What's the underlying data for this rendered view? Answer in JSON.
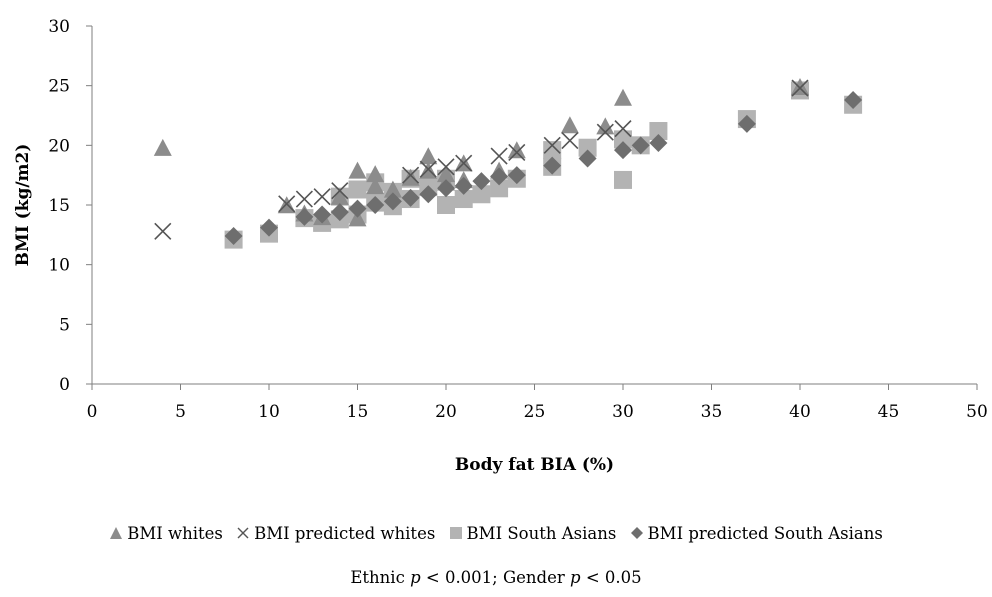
{
  "chart_data": {
    "type": "scatter",
    "title": "",
    "xlabel": "Body fat BIA (%)",
    "ylabel": "BMI (kg/m2)",
    "xlim": [
      0,
      50
    ],
    "ylim": [
      0,
      30
    ],
    "xticks": [
      0,
      5,
      10,
      15,
      20,
      25,
      30,
      35,
      40,
      45,
      50
    ],
    "yticks": [
      0,
      5,
      10,
      15,
      20,
      25,
      30
    ],
    "grid": false,
    "legend_position": "bottom",
    "series": [
      {
        "name": "BMI whites",
        "marker": "triangle",
        "color": "#8c8c8c",
        "points": [
          [
            4,
            19.7
          ],
          [
            11,
            14.9
          ],
          [
            12,
            14.2
          ],
          [
            13,
            13.9
          ],
          [
            14,
            15.6
          ],
          [
            15,
            13.8
          ],
          [
            15,
            17.8
          ],
          [
            16,
            16.5
          ],
          [
            16,
            17.5
          ],
          [
            17,
            16.2
          ],
          [
            18,
            17.2
          ],
          [
            19,
            17.8
          ],
          [
            19,
            19.0
          ],
          [
            20,
            16.8
          ],
          [
            20,
            17.5
          ],
          [
            21,
            18.4
          ],
          [
            21,
            17.0
          ],
          [
            23,
            17.8
          ],
          [
            24,
            19.5
          ],
          [
            27,
            21.6
          ],
          [
            29,
            21.5
          ],
          [
            30,
            23.9
          ],
          [
            40,
            24.8
          ]
        ]
      },
      {
        "name": "BMI predicted whites",
        "marker": "x",
        "color": "#555555",
        "points": [
          [
            4,
            12.8
          ],
          [
            11,
            15.1
          ],
          [
            12,
            15.5
          ],
          [
            13,
            15.7
          ],
          [
            14,
            16.2
          ],
          [
            18,
            17.5
          ],
          [
            19,
            18.0
          ],
          [
            20,
            18.2
          ],
          [
            21,
            18.5
          ],
          [
            23,
            19.1
          ],
          [
            24,
            19.4
          ],
          [
            26,
            20.0
          ],
          [
            27,
            20.4
          ],
          [
            29,
            21.1
          ],
          [
            30,
            21.4
          ],
          [
            40,
            24.8
          ]
        ]
      },
      {
        "name": "BMI South Asians",
        "marker": "square",
        "color": "#b3b3b3",
        "points": [
          [
            8,
            12.1
          ],
          [
            10,
            12.6
          ],
          [
            12,
            13.9
          ],
          [
            13,
            13.5
          ],
          [
            14,
            13.8
          ],
          [
            14,
            15.7
          ],
          [
            15,
            14.2
          ],
          [
            15,
            16.3
          ],
          [
            16,
            15.2
          ],
          [
            16,
            16.9
          ],
          [
            17,
            14.9
          ],
          [
            17,
            16.1
          ],
          [
            18,
            15.5
          ],
          [
            18,
            17.2
          ],
          [
            19,
            16.5
          ],
          [
            20,
            15.0
          ],
          [
            20,
            17.2
          ],
          [
            21,
            15.5
          ],
          [
            22,
            15.9
          ],
          [
            23,
            16.4
          ],
          [
            24,
            17.2
          ],
          [
            26,
            18.2
          ],
          [
            26,
            19.6
          ],
          [
            28,
            19.8
          ],
          [
            30,
            17.1
          ],
          [
            30,
            20.5
          ],
          [
            31,
            20.0
          ],
          [
            32,
            21.2
          ],
          [
            37,
            22.2
          ],
          [
            40,
            24.6
          ],
          [
            43,
            23.4
          ]
        ]
      },
      {
        "name": "BMI predicted South Asians",
        "marker": "diamond",
        "color": "#6e6e6e",
        "points": [
          [
            8,
            12.4
          ],
          [
            10,
            13.1
          ],
          [
            12,
            14.0
          ],
          [
            13,
            14.2
          ],
          [
            14,
            14.4
          ],
          [
            15,
            14.7
          ],
          [
            16,
            15.0
          ],
          [
            17,
            15.3
          ],
          [
            18,
            15.6
          ],
          [
            19,
            15.9
          ],
          [
            20,
            16.4
          ],
          [
            21,
            16.6
          ],
          [
            22,
            17.0
          ],
          [
            23,
            17.4
          ],
          [
            24,
            17.5
          ],
          [
            26,
            18.3
          ],
          [
            28,
            18.9
          ],
          [
            30,
            19.6
          ],
          [
            31,
            20.0
          ],
          [
            32,
            20.2
          ],
          [
            37,
            21.8
          ],
          [
            43,
            23.8
          ]
        ]
      }
    ],
    "note": {
      "part1": "Ethnic ",
      "var1": "p",
      "part2": " < 0.001; Gender ",
      "var2": "p",
      "part3": " < 0.05"
    }
  }
}
